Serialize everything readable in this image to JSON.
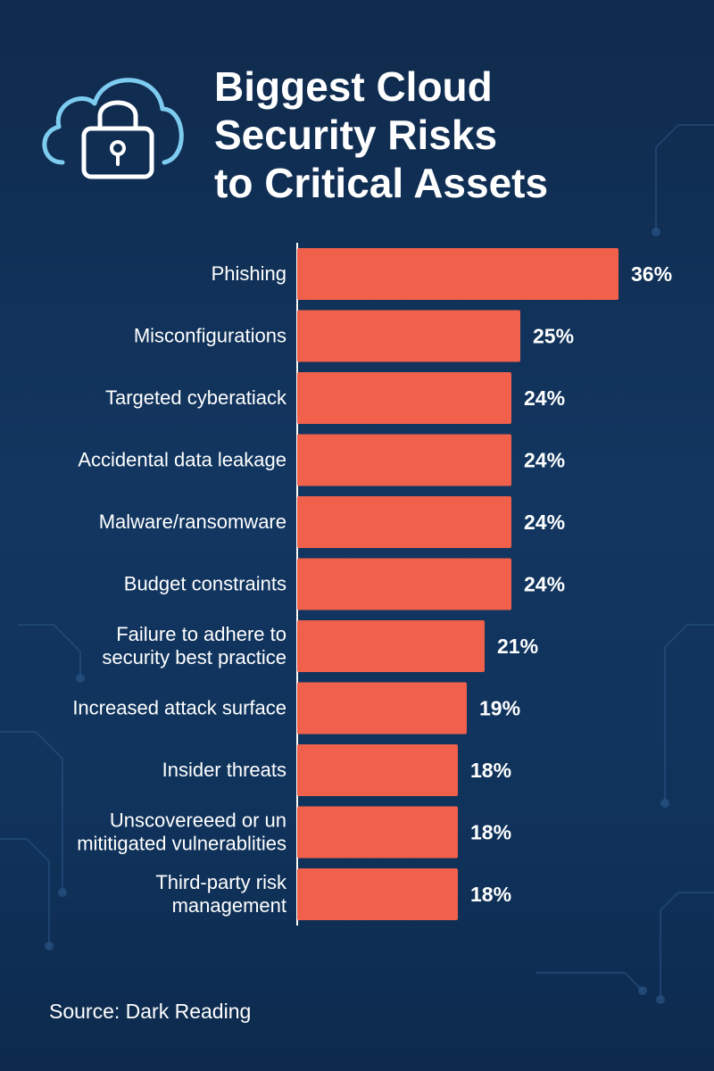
{
  "title": {
    "lines": [
      "Biggest Cloud",
      "Security Risks",
      "to Critical Assets"
    ]
  },
  "header_icon": "cloud-lock-icon",
  "source": "Source: Dark Reading",
  "colors": {
    "background": "#123660",
    "bar": "#f0604b",
    "text": "#ffffff",
    "icon": "#7ecbf0"
  },
  "chart_data": {
    "type": "bar",
    "orientation": "horizontal",
    "categories": [
      [
        "Phishing"
      ],
      [
        "Misconfigurations"
      ],
      [
        "Targeted cyberatiack"
      ],
      [
        "Accidental data leakage"
      ],
      [
        "Malware/ransomware"
      ],
      [
        "Budget constraints"
      ],
      [
        "Failure to adhere to",
        "security best practice"
      ],
      [
        "Increased attack surface"
      ],
      [
        "Insider threats"
      ],
      [
        "Unscovereeed or un",
        "mititigated vulnerablities"
      ],
      [
        "Third-party risk",
        "management"
      ]
    ],
    "values": [
      36,
      25,
      24,
      24,
      24,
      24,
      21,
      19,
      18,
      18,
      18
    ],
    "value_labels": [
      "36%",
      "25%",
      "24%",
      "24%",
      "24%",
      "24%",
      "21%",
      "19%",
      "18%",
      "18%",
      "18%"
    ],
    "xlim": [
      0,
      36
    ],
    "grid": false,
    "legend": "none"
  }
}
